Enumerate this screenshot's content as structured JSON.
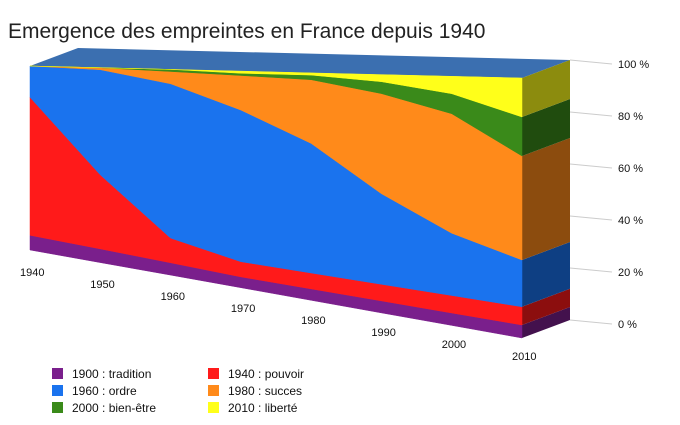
{
  "chart_data": {
    "type": "area",
    "stacked": true,
    "percent_stacked": true,
    "three_d": true,
    "title": "Emergence des empreintes en France depuis 1940",
    "x": [
      "1940",
      "1950",
      "1960",
      "1970",
      "1980",
      "1990",
      "2000",
      "2010"
    ],
    "y_ticks": [
      "0 %",
      "20 %",
      "40 %",
      "60 %",
      "80 %",
      "100 %"
    ],
    "ylim": [
      0,
      100
    ],
    "grid": true,
    "legend_position": "bottom-left",
    "series": [
      {
        "name": "1900 : tradition",
        "color": "#7a1f8c",
        "values": [
          8,
          7,
          6,
          5,
          5,
          5,
          5,
          5
        ]
      },
      {
        "name": "1940 : pouvoir",
        "color": "#ff1a1a",
        "values": [
          75,
          38,
          12,
          7,
          7,
          7,
          7,
          7
        ]
      },
      {
        "name": "1960 : ordre",
        "color": "#1a73ee",
        "values": [
          17,
          54,
          75,
          70,
          57,
          38,
          25,
          18
        ]
      },
      {
        "name": "1980 : succes",
        "color": "#ff8a1a",
        "values": [
          0,
          1,
          6,
          16,
          28,
          42,
          48,
          40
        ]
      },
      {
        "name": "2000 : bien-être",
        "color": "#3a8a1a",
        "values": [
          0,
          0,
          1,
          1,
          2,
          5,
          8,
          15
        ]
      },
      {
        "name": "2010 : liberté",
        "color": "#ffff1a",
        "values": [
          0,
          0,
          0,
          1,
          1,
          3,
          7,
          15
        ]
      }
    ]
  }
}
